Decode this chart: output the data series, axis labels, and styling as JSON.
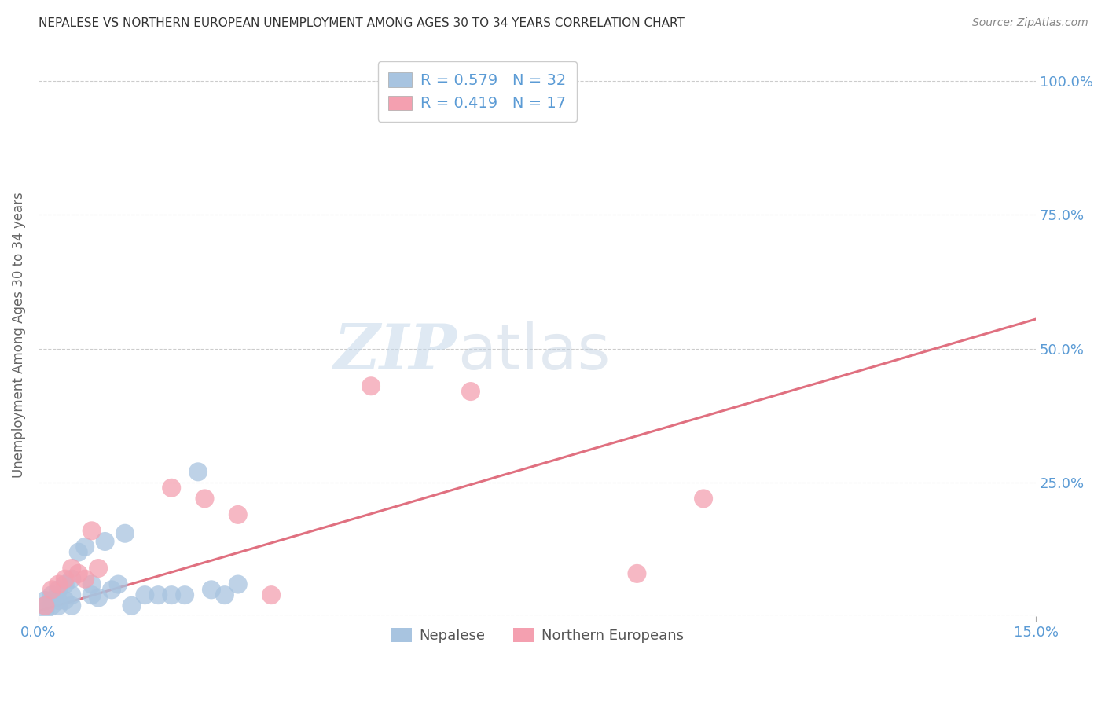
{
  "title": "NEPALESE VS NORTHERN EUROPEAN UNEMPLOYMENT AMONG AGES 30 TO 34 YEARS CORRELATION CHART",
  "source": "Source: ZipAtlas.com",
  "ylabel": "Unemployment Among Ages 30 to 34 years",
  "xlim": [
    0.0,
    0.15
  ],
  "ylim": [
    0.0,
    1.05
  ],
  "yticks": [
    0.0,
    0.25,
    0.5,
    0.75,
    1.0
  ],
  "ytick_labels": [
    "",
    "25.0%",
    "50.0%",
    "75.0%",
    "100.0%"
  ],
  "xticks": [
    0.0,
    0.15
  ],
  "xtick_labels": [
    "0.0%",
    "15.0%"
  ],
  "nepalese_color": "#a8c4e0",
  "northern_color": "#f4a0b0",
  "trend_color": "#e07080",
  "R_nepalese": "0.579",
  "N_nepalese": "32",
  "R_northern": "0.419",
  "N_northern": "17",
  "nepalese_x": [
    0.001,
    0.001,
    0.001,
    0.002,
    0.002,
    0.002,
    0.003,
    0.003,
    0.003,
    0.004,
    0.004,
    0.005,
    0.005,
    0.005,
    0.006,
    0.007,
    0.008,
    0.008,
    0.009,
    0.01,
    0.011,
    0.012,
    0.013,
    0.014,
    0.016,
    0.018,
    0.02,
    0.022,
    0.024,
    0.026,
    0.028,
    0.03
  ],
  "nepalese_y": [
    0.01,
    0.02,
    0.03,
    0.02,
    0.03,
    0.04,
    0.02,
    0.03,
    0.05,
    0.03,
    0.06,
    0.02,
    0.04,
    0.07,
    0.12,
    0.13,
    0.04,
    0.06,
    0.035,
    0.14,
    0.05,
    0.06,
    0.155,
    0.02,
    0.04,
    0.04,
    0.04,
    0.04,
    0.27,
    0.05,
    0.04,
    0.06
  ],
  "northern_x": [
    0.001,
    0.002,
    0.003,
    0.004,
    0.005,
    0.006,
    0.007,
    0.008,
    0.009,
    0.02,
    0.025,
    0.03,
    0.035,
    0.05,
    0.065,
    0.09,
    0.1
  ],
  "northern_y": [
    0.02,
    0.05,
    0.06,
    0.07,
    0.09,
    0.08,
    0.07,
    0.16,
    0.09,
    0.24,
    0.22,
    0.19,
    0.04,
    0.43,
    0.42,
    0.08,
    0.22
  ],
  "trend_x0": 0.0,
  "trend_x1": 0.15,
  "trend_y0": 0.01,
  "trend_y1": 0.555,
  "watermark_zip": "ZIP",
  "watermark_atlas": "atlas",
  "title_color": "#333333",
  "axis_color": "#5b9bd5",
  "axis_label_color": "#666666",
  "grid_color": "#cccccc"
}
